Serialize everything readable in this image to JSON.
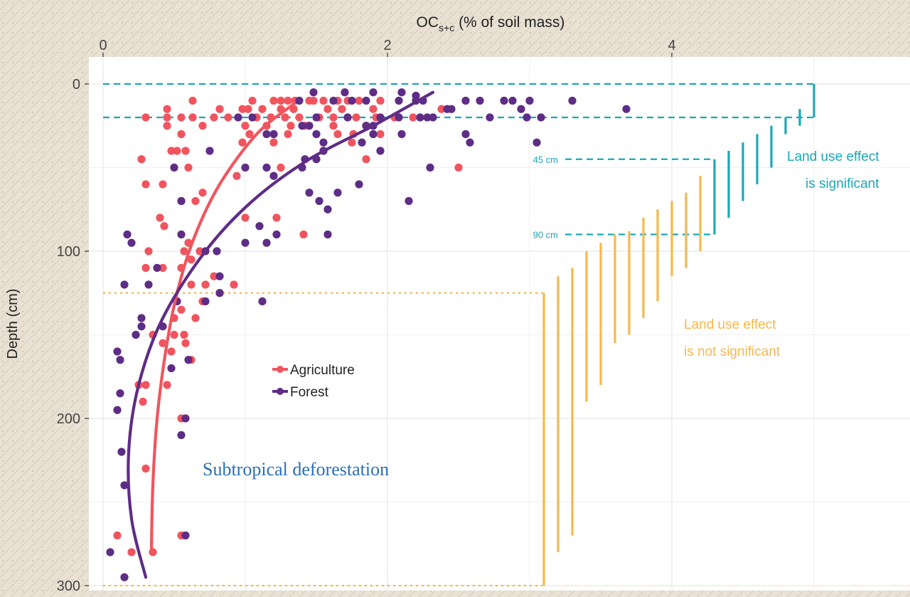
{
  "colors": {
    "agriculture": "#f0555f",
    "forest": "#5e2d86",
    "significant": "#1aa8b8",
    "not_significant": "#f7b84a",
    "panel": "#ffffff",
    "grid": "#ebebeb",
    "texture": "#d8cfbf"
  },
  "chart_data": {
    "type": "scatter",
    "title": "",
    "xlabel_main": "OC",
    "xlabel_sub": "s+c",
    "xlabel_rest": " (% of soil mass)",
    "ylabel": "Depth (cm)",
    "xlim": [
      -0.1,
      5.6
    ],
    "ylim": [
      312,
      -12
    ],
    "x_axis_position": "top",
    "y_reversed": true,
    "x_ticks": [
      {
        "value": 0,
        "label": "0"
      },
      {
        "value": 2,
        "label": "2"
      },
      {
        "value": 4,
        "label": "4"
      }
    ],
    "y_ticks": [
      {
        "value": 0,
        "label": "0"
      },
      {
        "value": 100,
        "label": "100"
      },
      {
        "value": 200,
        "label": "200"
      },
      {
        "value": 300,
        "label": "300"
      }
    ],
    "grid": true,
    "legend": {
      "placement": "middle",
      "items": [
        {
          "label": "Agriculture",
          "series": "agriculture"
        },
        {
          "label": "Forest",
          "series": "forest"
        }
      ]
    },
    "annotation": "Subtropical deforestation",
    "series": [
      {
        "name": "Agriculture",
        "key": "agriculture",
        "points": [
          [
            0.63,
            10
          ],
          [
            1.05,
            10
          ],
          [
            1.2,
            10
          ],
          [
            1.25,
            10
          ],
          [
            1.3,
            10
          ],
          [
            1.35,
            10
          ],
          [
            1.45,
            10
          ],
          [
            1.48,
            10
          ],
          [
            1.55,
            10
          ],
          [
            1.65,
            10
          ],
          [
            1.72,
            10
          ],
          [
            1.8,
            10
          ],
          [
            1.95,
            10
          ],
          [
            0.3,
            20
          ],
          [
            0.45,
            20
          ],
          [
            0.55,
            20
          ],
          [
            0.63,
            20
          ],
          [
            0.78,
            20
          ],
          [
            0.88,
            20
          ],
          [
            1.08,
            20
          ],
          [
            1.18,
            20
          ],
          [
            1.28,
            20
          ],
          [
            1.38,
            20
          ],
          [
            1.52,
            20
          ],
          [
            1.62,
            20
          ],
          [
            1.78,
            20
          ],
          [
            1.92,
            20
          ],
          [
            2.05,
            20
          ],
          [
            2.18,
            20
          ],
          [
            0.45,
            15
          ],
          [
            0.82,
            15
          ],
          [
            0.98,
            15
          ],
          [
            1.02,
            15
          ],
          [
            1.12,
            15
          ],
          [
            1.25,
            15
          ],
          [
            1.34,
            15
          ],
          [
            1.58,
            15
          ],
          [
            1.68,
            15
          ],
          [
            1.9,
            15
          ],
          [
            2.38,
            15
          ],
          [
            0.45,
            25
          ],
          [
            0.7,
            25
          ],
          [
            1.0,
            25
          ],
          [
            1.15,
            25
          ],
          [
            1.32,
            25
          ],
          [
            1.42,
            25
          ],
          [
            1.62,
            25
          ],
          [
            1.85,
            25
          ],
          [
            0.55,
            30
          ],
          [
            1.03,
            30
          ],
          [
            1.3,
            30
          ],
          [
            1.65,
            30
          ],
          [
            1.76,
            30
          ],
          [
            1.95,
            30
          ],
          [
            0.98,
            35
          ],
          [
            1.2,
            35
          ],
          [
            1.75,
            35
          ],
          [
            0.48,
            40
          ],
          [
            0.52,
            40
          ],
          [
            0.58,
            40
          ],
          [
            1.55,
            40
          ],
          [
            0.27,
            45
          ],
          [
            1.85,
            45
          ],
          [
            0.6,
            50
          ],
          [
            1.25,
            50
          ],
          [
            2.5,
            50
          ],
          [
            0.94,
            55
          ],
          [
            0.3,
            60
          ],
          [
            0.42,
            60
          ],
          [
            0.7,
            65
          ],
          [
            0.55,
            70
          ],
          [
            0.65,
            70
          ],
          [
            1.0,
            80
          ],
          [
            1.22,
            80
          ],
          [
            0.4,
            80
          ],
          [
            0.43,
            85
          ],
          [
            1.41,
            90
          ],
          [
            0.6,
            95
          ],
          [
            0.32,
            100
          ],
          [
            0.57,
            100
          ],
          [
            0.68,
            100
          ],
          [
            0.62,
            105
          ],
          [
            0.3,
            110
          ],
          [
            0.42,
            110
          ],
          [
            0.55,
            110
          ],
          [
            0.78,
            115
          ],
          [
            0.62,
            120
          ],
          [
            0.72,
            120
          ],
          [
            0.82,
            125
          ],
          [
            0.7,
            130
          ],
          [
            0.92,
            120
          ],
          [
            0.55,
            135
          ],
          [
            0.5,
            140
          ],
          [
            0.65,
            140
          ],
          [
            0.35,
            150
          ],
          [
            0.5,
            150
          ],
          [
            0.42,
            155
          ],
          [
            0.57,
            150
          ],
          [
            0.58,
            155
          ],
          [
            0.48,
            160
          ],
          [
            0.62,
            165
          ],
          [
            0.25,
            180
          ],
          [
            0.28,
            190
          ],
          [
            0.3,
            180
          ],
          [
            0.45,
            180
          ],
          [
            0.55,
            200
          ],
          [
            0.3,
            230
          ],
          [
            0.55,
            270
          ],
          [
            0.1,
            270
          ],
          [
            0.2,
            280
          ],
          [
            0.35,
            280
          ]
        ],
        "curve": [
          [
            1.34,
            12
          ],
          [
            1.08,
            30
          ],
          [
            0.82,
            60
          ],
          [
            0.64,
            92
          ],
          [
            0.52,
            125
          ],
          [
            0.44,
            160
          ],
          [
            0.38,
            200
          ],
          [
            0.35,
            240
          ],
          [
            0.34,
            278
          ]
        ]
      },
      {
        "name": "Forest",
        "key": "forest",
        "points": [
          [
            1.48,
            5
          ],
          [
            1.7,
            5
          ],
          [
            1.9,
            5
          ],
          [
            2.1,
            5
          ],
          [
            2.2,
            7
          ],
          [
            1.38,
            10
          ],
          [
            1.62,
            10
          ],
          [
            1.75,
            10
          ],
          [
            1.85,
            10
          ],
          [
            2.08,
            10
          ],
          [
            2.2,
            10
          ],
          [
            2.25,
            10
          ],
          [
            2.55,
            10
          ],
          [
            2.65,
            10
          ],
          [
            2.82,
            10
          ],
          [
            2.88,
            10
          ],
          [
            3.0,
            10
          ],
          [
            3.3,
            10
          ],
          [
            2.45,
            15
          ],
          [
            2.42,
            15
          ],
          [
            2.94,
            15
          ],
          [
            3.68,
            15
          ],
          [
            0.95,
            20
          ],
          [
            1.05,
            20
          ],
          [
            1.5,
            20
          ],
          [
            1.72,
            20
          ],
          [
            1.95,
            20
          ],
          [
            2.08,
            20
          ],
          [
            2.23,
            20
          ],
          [
            2.28,
            20
          ],
          [
            2.32,
            20
          ],
          [
            2.72,
            20
          ],
          [
            2.98,
            20
          ],
          [
            3.08,
            20
          ],
          [
            1.4,
            25
          ],
          [
            1.45,
            25
          ],
          [
            1.85,
            25
          ],
          [
            1.9,
            25
          ],
          [
            1.15,
            30
          ],
          [
            1.2,
            30
          ],
          [
            1.5,
            30
          ],
          [
            1.9,
            30
          ],
          [
            1.55,
            35
          ],
          [
            1.82,
            35
          ],
          [
            1.95,
            40
          ],
          [
            0.75,
            40
          ],
          [
            2.1,
            30
          ],
          [
            2.55,
            30
          ],
          [
            2.58,
            35
          ],
          [
            3.05,
            35
          ],
          [
            1.42,
            45
          ],
          [
            1.5,
            45
          ],
          [
            1.55,
            40
          ],
          [
            0.5,
            50
          ],
          [
            1.0,
            50
          ],
          [
            1.15,
            50
          ],
          [
            1.4,
            50
          ],
          [
            2.3,
            50
          ],
          [
            1.2,
            55
          ],
          [
            1.8,
            60
          ],
          [
            1.65,
            65
          ],
          [
            1.45,
            65
          ],
          [
            0.55,
            70
          ],
          [
            1.52,
            70
          ],
          [
            2.15,
            70
          ],
          [
            1.58,
            75
          ],
          [
            1.1,
            85
          ],
          [
            0.17,
            90
          ],
          [
            1.58,
            90
          ],
          [
            1.22,
            90
          ],
          [
            0.2,
            95
          ],
          [
            0.55,
            90
          ],
          [
            1.0,
            95
          ],
          [
            1.15,
            95
          ],
          [
            0.72,
            100
          ],
          [
            0.8,
            100
          ],
          [
            0.38,
            110
          ],
          [
            0.82,
            115
          ],
          [
            0.82,
            125
          ],
          [
            0.15,
            120
          ],
          [
            0.32,
            120
          ],
          [
            1.12,
            130
          ],
          [
            0.72,
            130
          ],
          [
            0.52,
            130
          ],
          [
            0.27,
            140
          ],
          [
            0.27,
            145
          ],
          [
            0.23,
            150
          ],
          [
            0.42,
            145
          ],
          [
            0.6,
            165
          ],
          [
            0.48,
            170
          ],
          [
            0.1,
            160
          ],
          [
            0.12,
            165
          ],
          [
            0.1,
            195
          ],
          [
            0.12,
            185
          ],
          [
            0.13,
            220
          ],
          [
            0.15,
            240
          ],
          [
            0.58,
            200
          ],
          [
            0.55,
            210
          ],
          [
            0.58,
            270
          ],
          [
            0.05,
            280
          ],
          [
            0.15,
            295
          ]
        ],
        "curve": [
          [
            2.32,
            5
          ],
          [
            1.9,
            25
          ],
          [
            1.45,
            45
          ],
          [
            1.05,
            70
          ],
          [
            0.72,
            100
          ],
          [
            0.42,
            140
          ],
          [
            0.25,
            180
          ],
          [
            0.18,
            220
          ],
          [
            0.2,
            260
          ],
          [
            0.3,
            295
          ]
        ]
      }
    ],
    "reference_lines": [
      {
        "type": "significant",
        "y": 0
      },
      {
        "type": "significant",
        "y": 20
      },
      {
        "type": "significant",
        "y": 45,
        "label": "45 cm"
      },
      {
        "type": "significant",
        "y": 90,
        "label": "90 cm"
      },
      {
        "type": "not_significant",
        "y": 125
      },
      {
        "type": "not_significant",
        "y": 300
      }
    ],
    "depth_bars": [
      {
        "x": 5.0,
        "top": 0,
        "bottom": 20,
        "significant": true
      },
      {
        "x": 4.9,
        "top": 15,
        "bottom": 25,
        "significant": true
      },
      {
        "x": 4.8,
        "top": 20,
        "bottom": 30,
        "significant": true
      },
      {
        "x": 4.7,
        "top": 25,
        "bottom": 50,
        "significant": true
      },
      {
        "x": 4.6,
        "top": 30,
        "bottom": 60,
        "significant": true
      },
      {
        "x": 4.5,
        "top": 35,
        "bottom": 70,
        "significant": true
      },
      {
        "x": 4.4,
        "top": 40,
        "bottom": 80,
        "significant": true
      },
      {
        "x": 4.3,
        "top": 45,
        "bottom": 90,
        "significant": true
      },
      {
        "x": 4.2,
        "top": 55,
        "bottom": 100,
        "significant": false
      },
      {
        "x": 4.1,
        "top": 65,
        "bottom": 110,
        "significant": false
      },
      {
        "x": 4.0,
        "top": 70,
        "bottom": 115,
        "significant": false
      },
      {
        "x": 3.9,
        "top": 75,
        "bottom": 130,
        "significant": false
      },
      {
        "x": 3.8,
        "top": 80,
        "bottom": 140,
        "significant": false
      },
      {
        "x": 3.7,
        "top": 88,
        "bottom": 150,
        "significant": false
      },
      {
        "x": 3.6,
        "top": 90,
        "bottom": 155,
        "significant": false
      },
      {
        "x": 3.5,
        "top": 95,
        "bottom": 180,
        "significant": false
      },
      {
        "x": 3.4,
        "top": 100,
        "bottom": 190,
        "significant": false
      },
      {
        "x": 3.3,
        "top": 110,
        "bottom": 270,
        "significant": false
      },
      {
        "x": 3.2,
        "top": 115,
        "bottom": 280,
        "significant": false
      },
      {
        "x": 3.1,
        "top": 125,
        "bottom": 300,
        "significant": false
      }
    ],
    "effect_labels": {
      "significant": [
        "Land use effect",
        "is significant"
      ],
      "not_significant": [
        "Land use effect",
        "is not significant"
      ]
    }
  }
}
